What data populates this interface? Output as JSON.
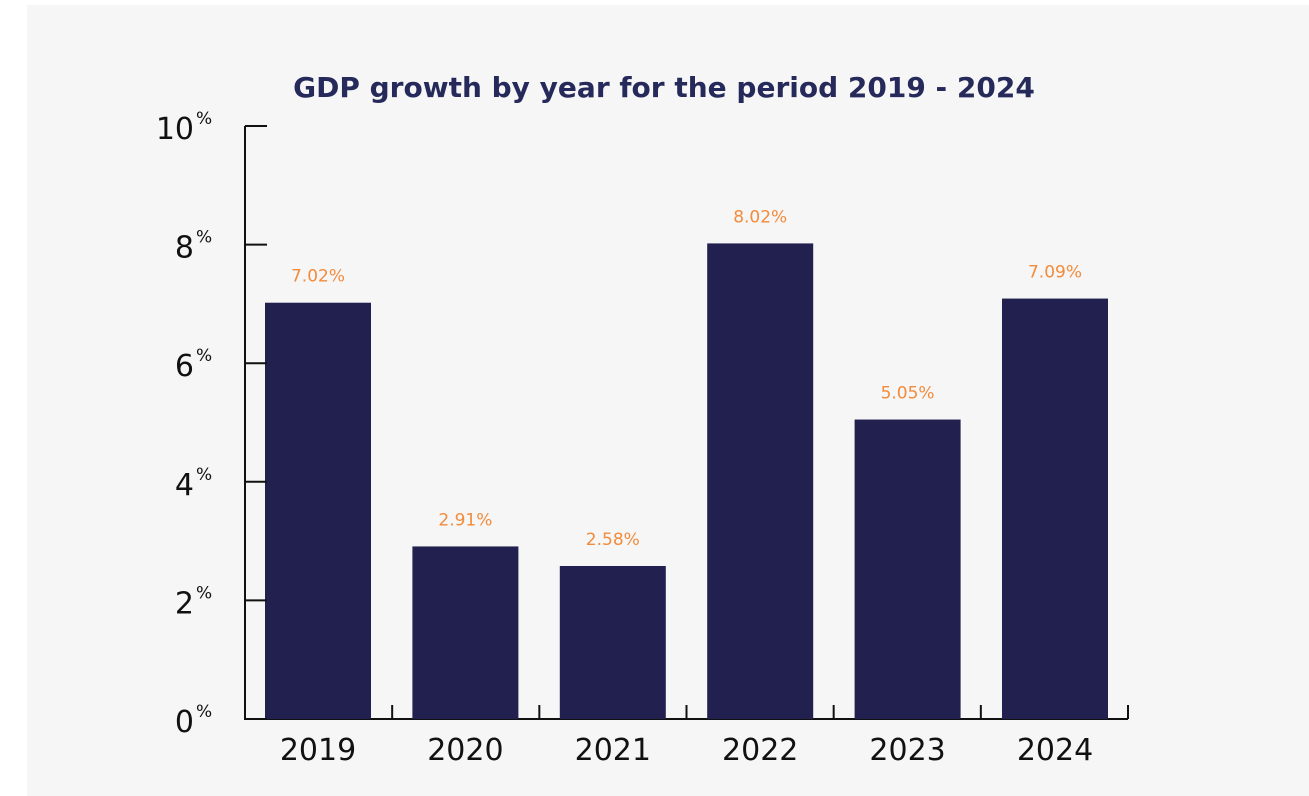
{
  "chart_data": {
    "type": "bar",
    "title": "GDP growth by year for the period 2019 - 2024",
    "xlabel": "",
    "ylabel": "",
    "categories": [
      "2019",
      "2020",
      "2021",
      "2022",
      "2023",
      "2024"
    ],
    "values": [
      7.02,
      2.91,
      2.58,
      8.02,
      5.05,
      7.09
    ],
    "data_labels": [
      "7.02%",
      "2.91%",
      "2.58%",
      "8.02%",
      "5.05%",
      "7.09%"
    ],
    "ylim": [
      0,
      10
    ],
    "y_ticks": [
      {
        "value": 0,
        "label": "0",
        "unit": "%"
      },
      {
        "value": 2,
        "label": "2",
        "unit": "%"
      },
      {
        "value": 4,
        "label": "4",
        "unit": "%"
      },
      {
        "value": 6,
        "label": "6",
        "unit": "%"
      },
      {
        "value": 8,
        "label": "8",
        "unit": "%"
      },
      {
        "value": 10,
        "label": "10",
        "unit": "%"
      }
    ],
    "grid": false,
    "legend": "none",
    "colors": {
      "bar": "#21204f",
      "data_label": "#f28b3c",
      "title": "#262a5a",
      "axis": "#111111",
      "tick_label": "#111111",
      "background": "#f6f6f7"
    }
  }
}
